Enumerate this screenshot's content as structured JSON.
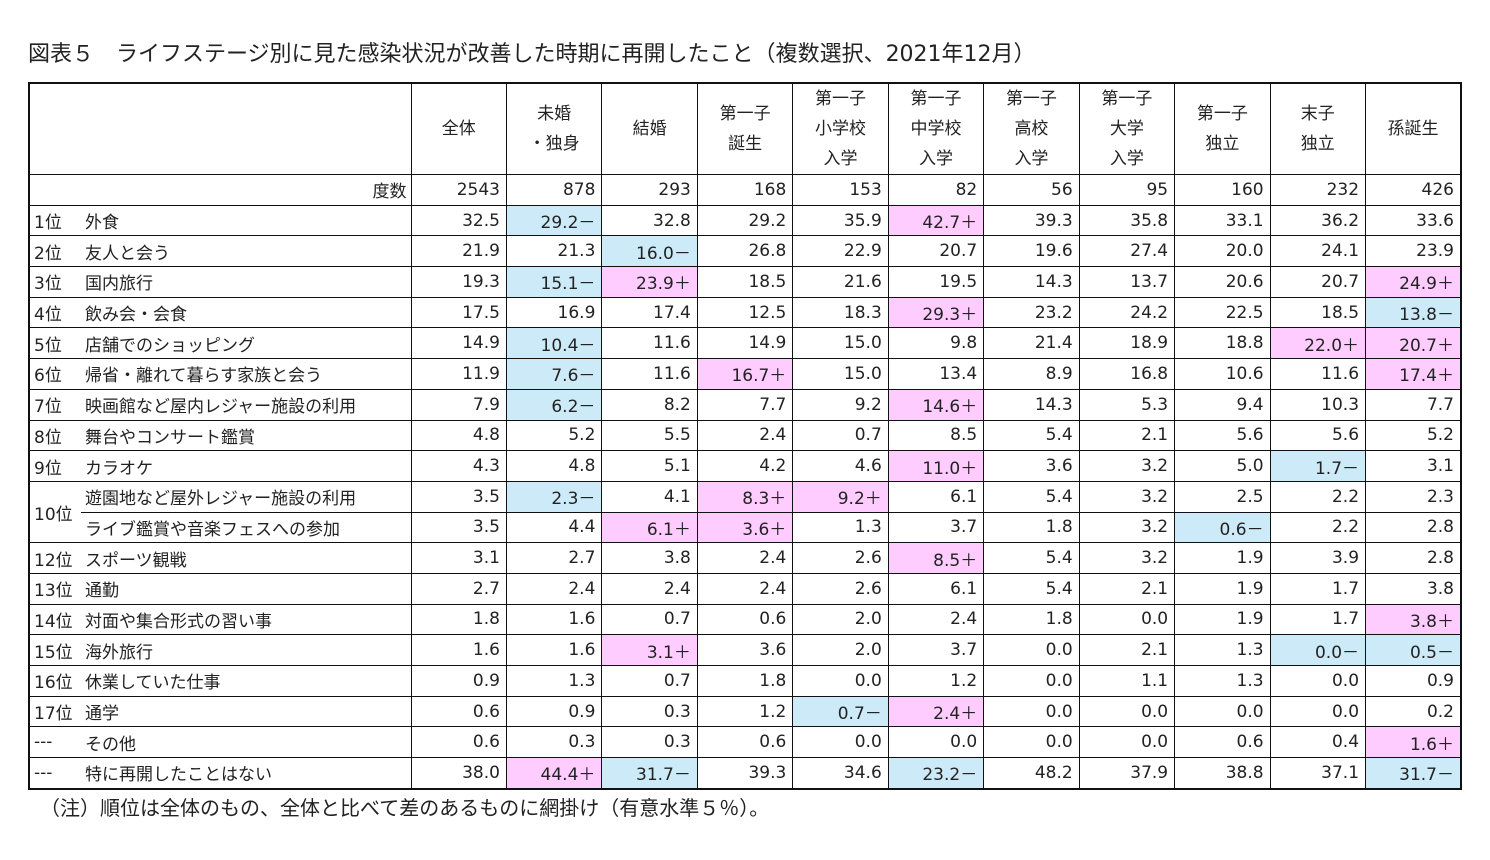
{
  "title": "図表５　ライフステージ別に見た感染状況が改善した時期に再開したこと（複数選択、2021年12月）",
  "table": {
    "columns": [
      [
        "全体"
      ],
      [
        "未婚",
        "・独身"
      ],
      [
        "結婚"
      ],
      [
        "第一子",
        "誕生"
      ],
      [
        "第一子",
        "小学校",
        "入学"
      ],
      [
        "第一子",
        "中学校",
        "入学"
      ],
      [
        "第一子",
        "高校",
        "入学"
      ],
      [
        "第一子",
        "大学",
        "入学"
      ],
      [
        "第一子",
        "独立"
      ],
      [
        "末子",
        "独立"
      ],
      [
        "孫誕生"
      ]
    ],
    "count_label": "度数",
    "counts": [
      2543,
      878,
      293,
      168,
      153,
      82,
      56,
      95,
      160,
      232,
      426
    ],
    "rows": [
      {
        "rank": "1位",
        "item": "外食",
        "values": [
          "32.5",
          "29.2－",
          "32.8",
          "29.2",
          "35.9",
          "42.7＋",
          "39.3",
          "35.8",
          "33.1",
          "36.2",
          "33.6"
        ]
      },
      {
        "rank": "2位",
        "item": "友人と会う",
        "values": [
          "21.9",
          "21.3",
          "16.0－",
          "26.8",
          "22.9",
          "20.7",
          "19.6",
          "27.4",
          "20.0",
          "24.1",
          "23.9"
        ]
      },
      {
        "rank": "3位",
        "item": "国内旅行",
        "values": [
          "19.3",
          "15.1－",
          "23.9＋",
          "18.5",
          "21.6",
          "19.5",
          "14.3",
          "13.7",
          "20.6",
          "20.7",
          "24.9＋"
        ]
      },
      {
        "rank": "4位",
        "item": "飲み会・会食",
        "values": [
          "17.5",
          "16.9",
          "17.4",
          "12.5",
          "18.3",
          "29.3＋",
          "23.2",
          "24.2",
          "22.5",
          "18.5",
          "13.8－"
        ]
      },
      {
        "rank": "5位",
        "item": "店舗でのショッピング",
        "values": [
          "14.9",
          "10.4－",
          "11.6",
          "14.9",
          "15.0",
          "9.8",
          "21.4",
          "18.9",
          "18.8",
          "22.0＋",
          "20.7＋"
        ]
      },
      {
        "rank": "6位",
        "item": "帰省・離れて暮らす家族と会う",
        "values": [
          "11.9",
          "7.6－",
          "11.6",
          "16.7＋",
          "15.0",
          "13.4",
          "8.9",
          "16.8",
          "10.6",
          "11.6",
          "17.4＋"
        ]
      },
      {
        "rank": "7位",
        "item": "映画館など屋内レジャー施設の利用",
        "values": [
          "7.9",
          "6.2－",
          "8.2",
          "7.7",
          "9.2",
          "14.6＋",
          "14.3",
          "5.3",
          "9.4",
          "10.3",
          "7.7"
        ]
      },
      {
        "rank": "8位",
        "item": "舞台やコンサート鑑賞",
        "values": [
          "4.8",
          "5.2",
          "5.5",
          "2.4",
          "0.7",
          "8.5",
          "5.4",
          "2.1",
          "5.6",
          "5.6",
          "5.2"
        ]
      },
      {
        "rank": "9位",
        "item": "カラオケ",
        "values": [
          "4.3",
          "4.8",
          "5.1",
          "4.2",
          "4.6",
          "11.0＋",
          "3.6",
          "3.2",
          "5.0",
          "1.7－",
          "3.1"
        ]
      },
      {
        "rank": "10位",
        "item": "遊園地など屋外レジャー施設の利用",
        "values": [
          "3.5",
          "2.3－",
          "4.1",
          "8.3＋",
          "9.2＋",
          "6.1",
          "5.4",
          "3.2",
          "2.5",
          "2.2",
          "2.3"
        ]
      },
      {
        "rank": null,
        "item": "ライブ鑑賞や音楽フェスへの参加",
        "values": [
          "3.5",
          "4.4",
          "6.1＋",
          "3.6＋",
          "1.3",
          "3.7",
          "1.8",
          "3.2",
          "0.6－",
          "2.2",
          "2.8"
        ]
      },
      {
        "rank": "12位",
        "item": "スポーツ観戦",
        "values": [
          "3.1",
          "2.7",
          "3.8",
          "2.4",
          "2.6",
          "8.5＋",
          "5.4",
          "3.2",
          "1.9",
          "3.9",
          "2.8"
        ]
      },
      {
        "rank": "13位",
        "item": "通勤",
        "values": [
          "2.7",
          "2.4",
          "2.4",
          "2.4",
          "2.6",
          "6.1",
          "5.4",
          "2.1",
          "1.9",
          "1.7",
          "3.8"
        ]
      },
      {
        "rank": "14位",
        "item": "対面や集合形式の習い事",
        "values": [
          "1.8",
          "1.6",
          "0.7",
          "0.6",
          "2.0",
          "2.4",
          "1.8",
          "0.0",
          "1.9",
          "1.7",
          "3.8＋"
        ]
      },
      {
        "rank": "15位",
        "item": "海外旅行",
        "values": [
          "1.6",
          "1.6",
          "3.1＋",
          "3.6",
          "2.0",
          "3.7",
          "0.0",
          "2.1",
          "1.3",
          "0.0－",
          "0.5－"
        ]
      },
      {
        "rank": "16位",
        "item": "休業していた仕事",
        "values": [
          "0.9",
          "1.3",
          "0.7",
          "1.8",
          "0.0",
          "1.2",
          "0.0",
          "1.1",
          "1.3",
          "0.0",
          "0.9"
        ]
      },
      {
        "rank": "17位",
        "item": "通学",
        "values": [
          "0.6",
          "0.9",
          "0.3",
          "1.2",
          "0.7－",
          "2.4＋",
          "0.0",
          "0.0",
          "0.0",
          "0.0",
          "0.2"
        ]
      },
      {
        "rank": "---",
        "item": "その他",
        "values": [
          "0.6",
          "0.3",
          "0.3",
          "0.6",
          "0.0",
          "0.0",
          "0.0",
          "0.0",
          "0.6",
          "0.4",
          "1.6＋"
        ]
      },
      {
        "rank": "---",
        "item": "特に再開したことはない",
        "values": [
          "38.0",
          "44.4＋",
          "31.7－",
          "39.3",
          "34.6",
          "23.2－",
          "48.2",
          "37.9",
          "38.8",
          "37.1",
          "31.7－"
        ]
      }
    ]
  },
  "highlight_colors": {
    "＋": "#ffccff",
    "－": "#cceaf8"
  },
  "note": "（注）順位は全体のもの、全体と比べて差のあるものに網掛け（有意水準５％）。"
}
